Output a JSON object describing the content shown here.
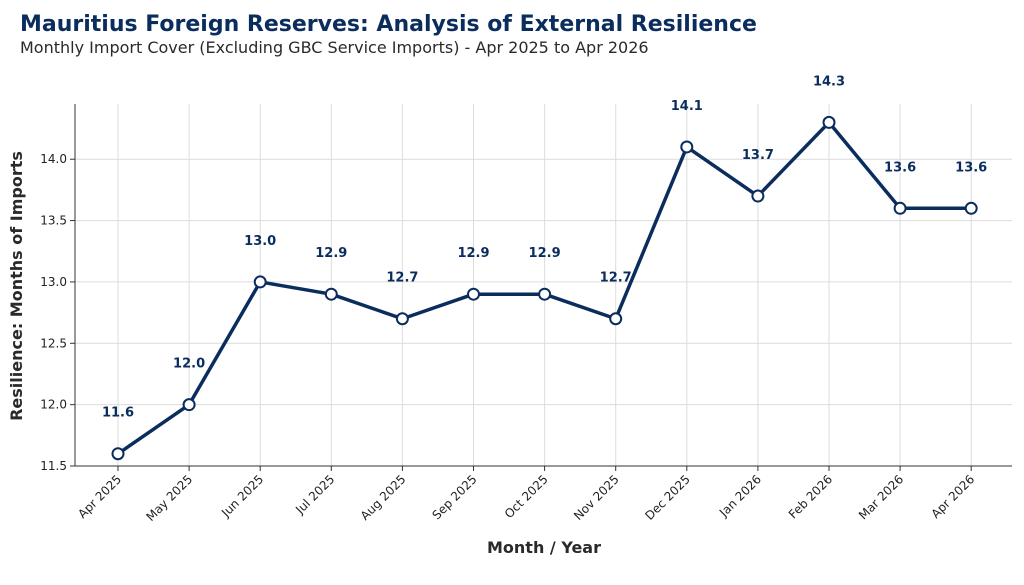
{
  "chart_data": {
    "type": "line",
    "title": "Mauritius Foreign Reserves: Analysis of External Resilience",
    "subtitle": "Monthly Import Cover (Excluding GBC Service Imports) - Apr 2025 to Apr 2026",
    "xlabel": "Month / Year",
    "ylabel": "Resilience: Months of Imports",
    "categories": [
      "Apr 2025",
      "May 2025",
      "Jun 2025",
      "Jul 2025",
      "Aug 2025",
      "Sep 2025",
      "Oct 2025",
      "Nov 2025",
      "Dec 2025",
      "Jan 2026",
      "Feb 2026",
      "Mar 2026",
      "Apr 2026"
    ],
    "values": [
      11.6,
      12.0,
      13.0,
      12.9,
      12.7,
      12.9,
      12.9,
      12.7,
      14.1,
      13.7,
      14.3,
      13.6,
      13.6
    ],
    "data_labels": [
      "11.6",
      "12.0",
      "13.0",
      "12.9",
      "12.7",
      "12.9",
      "12.9",
      "12.7",
      "14.1",
      "13.7",
      "14.3",
      "13.6",
      "13.6"
    ],
    "ylim": [
      11.5,
      14.45
    ],
    "yticks": [
      11.5,
      12.0,
      12.5,
      13.0,
      13.5,
      14.0
    ],
    "ytick_labels": [
      "11.5",
      "12.0",
      "12.5",
      "13.0",
      "13.5",
      "14.0"
    ],
    "grid": true,
    "line_color": "#0b2d5e",
    "marker_fill": "#ffffff"
  }
}
